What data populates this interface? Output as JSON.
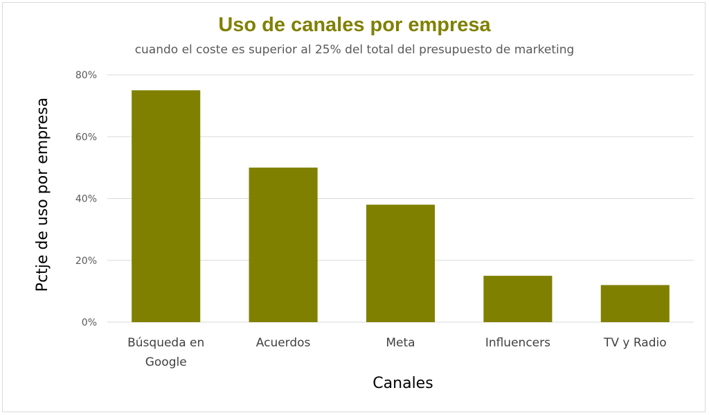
{
  "chart_data": {
    "type": "bar",
    "title": "Uso de canales por empresa",
    "subtitle": "cuando el coste es superior al 25% del total del presupuesto de marketing",
    "xlabel": "Canales",
    "ylabel": "Pctje de uso por empresa",
    "categories": [
      [
        "Búsqueda en",
        "Google"
      ],
      [
        "Acuerdos"
      ],
      [
        "Meta"
      ],
      [
        "Influencers"
      ],
      [
        "TV y Radio"
      ]
    ],
    "values": [
      75,
      50,
      38,
      15,
      12
    ],
    "ylim": [
      0,
      80
    ],
    "yticks": [
      0,
      20,
      40,
      60,
      80
    ],
    "ytick_labels": [
      "0%",
      "20%",
      "40%",
      "60%",
      "80%"
    ],
    "grid": true,
    "legend": "none",
    "colors": {
      "bar": "#808000",
      "title": "#808000",
      "grid": "#d9d9d9"
    }
  }
}
